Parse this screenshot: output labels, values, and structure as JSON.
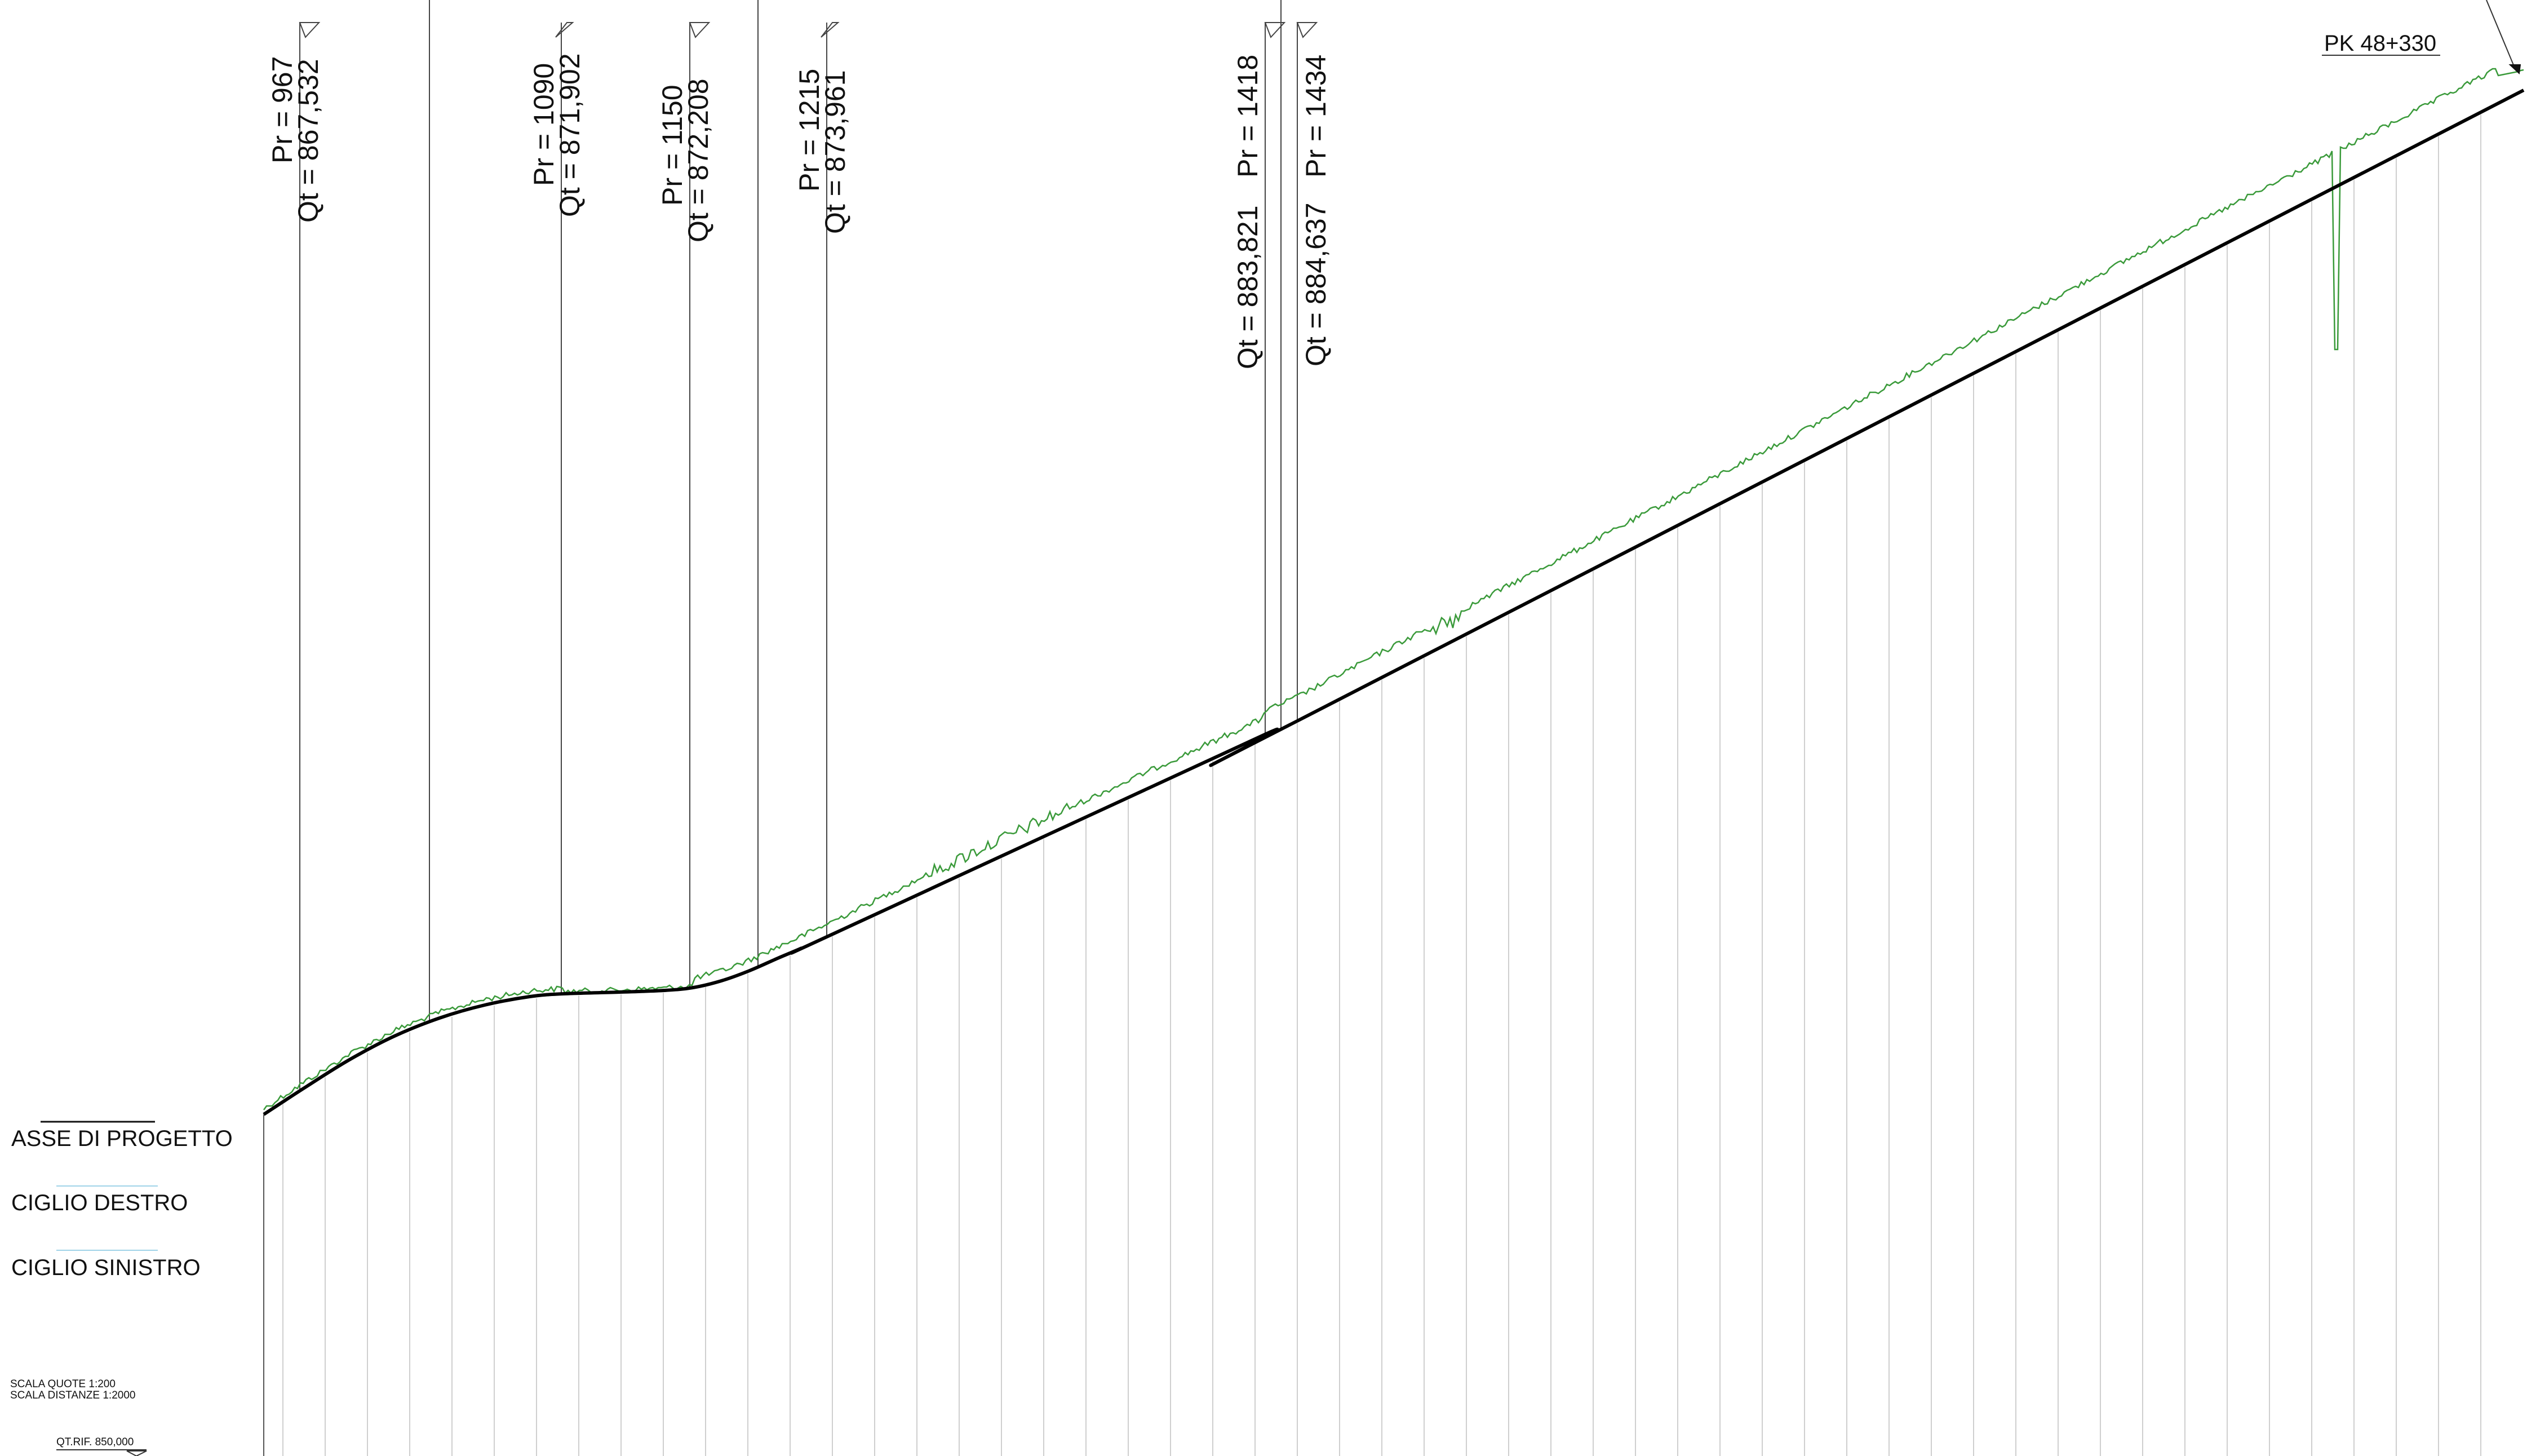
{
  "chart_data": {
    "type": "line",
    "title": "",
    "stations": [
      {
        "pr": "Pr = 967",
        "qt": "Qt = 867,532"
      },
      {
        "pr": "Pr = 1090",
        "qt": "Qt = 871,902"
      },
      {
        "pr": "Pr = 1150",
        "qt": "Qt = 872,208"
      },
      {
        "pr": "Pr = 1215",
        "qt": "Qt = 873,961"
      },
      {
        "pr": "Pr = 1418",
        "qt": "Qt = 883,821"
      },
      {
        "pr": "Pr = 1434",
        "qt": "Qt = 884,637"
      }
    ],
    "end_marker": "PK 48+330",
    "series": [
      {
        "name": "ASSE DI PROGETTO",
        "color": "#000000"
      }
    ],
    "terrain_color": "#3a9a3a",
    "grid": true
  },
  "legend": {
    "items": [
      {
        "label": "ASSE DI PROGETTO",
        "color": "#000000"
      },
      {
        "label": "CIGLIO DESTRO",
        "color": "#9fd3e8"
      },
      {
        "label": "CIGLIO SINISTRO",
        "color": "#9fd3e8"
      }
    ]
  },
  "scale": {
    "quote": "SCALA QUOTE 1:200",
    "distanze": "SCALA DISTANZE 1:2000"
  },
  "reference": "QT.RIF. 850,000"
}
